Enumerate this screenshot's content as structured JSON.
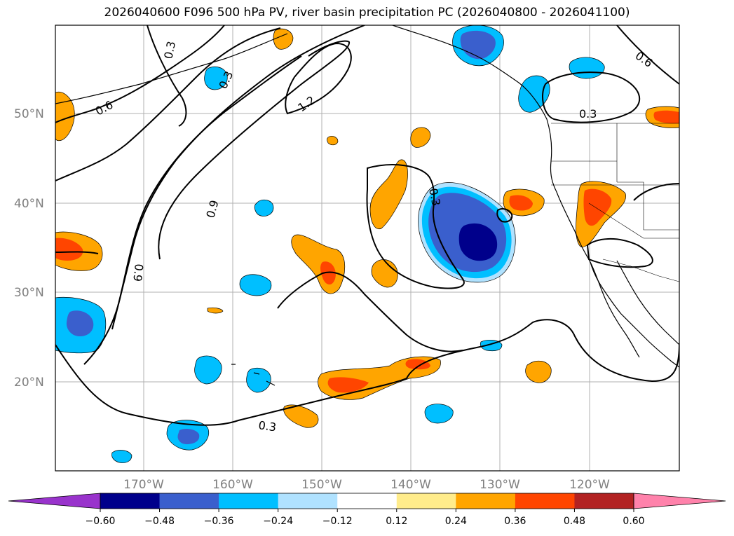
{
  "title": "2026040600 F096 500 hPa PV, river basin precipitation PC (2026040800 - 2026041100)",
  "map": {
    "lat_labels": [
      "50°N",
      "40°N",
      "30°N",
      "20°N"
    ],
    "lon_labels": [
      "170°W",
      "160°W",
      "150°W",
      "140°W",
      "130°W",
      "120°W"
    ],
    "contour_labels": [
      "0.3",
      "0.3",
      "0.6",
      "0.6",
      "1.2",
      "0.9",
      "0.9",
      "0.3",
      "0.3",
      "0.3"
    ]
  },
  "colorbar": {
    "ticks": [
      "−0.60",
      "−0.48",
      "−0.36",
      "−0.24",
      "−0.12",
      "0.12",
      "0.24",
      "0.36",
      "0.48",
      "0.60"
    ],
    "colors": [
      "#9933cc",
      "#00008b",
      "#3a5fcd",
      "#00bfff",
      "#b0e2ff",
      "#ffffff",
      "#ffec8b",
      "#ffa500",
      "#ff4500",
      "#b22222",
      "#ff82ab"
    ]
  }
}
